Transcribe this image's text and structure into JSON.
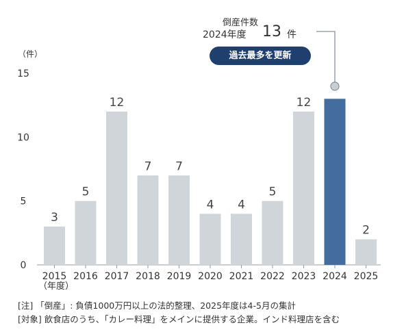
{
  "chart_data": {
    "type": "bar",
    "unit_label": "（件）",
    "x_unit_label": "（年度）",
    "categories": [
      "2015",
      "2016",
      "2017",
      "2018",
      "2019",
      "2020",
      "2021",
      "2022",
      "2023",
      "2024",
      "2025"
    ],
    "values": [
      3,
      5,
      12,
      7,
      7,
      4,
      4,
      5,
      12,
      13,
      2
    ],
    "value_labels": [
      "3",
      "5",
      "12",
      "7",
      "7",
      "4",
      "4",
      "5",
      "12",
      "",
      ""
    ],
    "highlight_index": 9,
    "last_value_label": "2",
    "yticks": [
      0,
      5,
      10,
      15
    ],
    "ytick_labels": [
      "0",
      "5",
      "10",
      "15"
    ],
    "ylim": [
      0,
      15
    ],
    "colors": {
      "bar": "#d0d5da",
      "highlight": "#436d9e",
      "badge": "#1f3f6e",
      "axis": "#999999",
      "callout_line": "#8a8f94"
    },
    "annotation": {
      "title": "倒産件数",
      "year_text": "2024年度",
      "value": "13",
      "unit": "件",
      "badge": "過去最多を更新"
    }
  },
  "notes": {
    "line1": "[注] 「倒産」: 負債1000万円以上の法的整理、2025年度は4-5月の集計",
    "line2": "[対象] 飲食店のうち、「カレー料理」をメインに提供する企業。インド料理店を含む"
  }
}
